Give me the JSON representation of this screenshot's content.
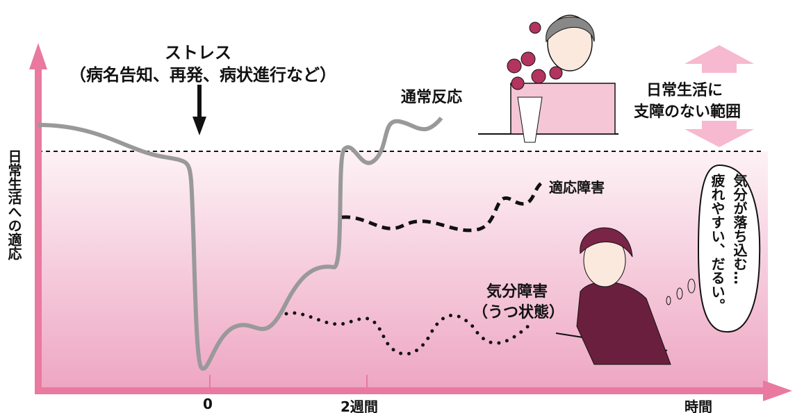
{
  "stress": {
    "title": "ストレス",
    "note": "（病名告知、再発、病状進行など）"
  },
  "normal_reaction": "通常反応",
  "range_label": {
    "line1": "日常生活に",
    "line2": "支障のない範囲"
  },
  "adjustment_disorder": "適応障害",
  "mood_disorder": {
    "line1": "気分障害",
    "line2": "（うつ状態）"
  },
  "speech": {
    "line1": "気分が落ち込む…",
    "line2": "疲れやすい、だるい。"
  },
  "y_axis_label": "日常生活への適応",
  "x_labels": [
    "0",
    "2週間",
    "時間"
  ]
}
